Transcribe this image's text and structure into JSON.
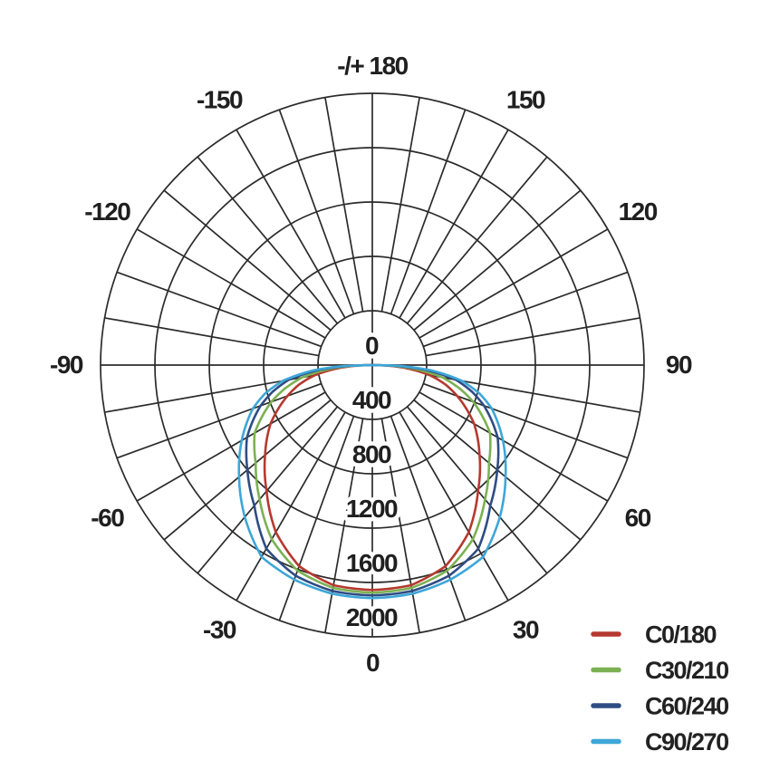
{
  "chart_data": {
    "type": "line",
    "subtype": "polar-photometric",
    "title": "",
    "background_color": "#ffffff",
    "grid": true,
    "grid_color": "#2b2b2b",
    "text_color": "#1f1f1f",
    "angle_unit": "degrees",
    "angular_tick_step_deg": 10,
    "angular_label_step_deg": 30,
    "top_angle_label": "-/+ 180",
    "bottom_angle_label": "0",
    "angular_labels": [
      {
        "angle": -150,
        "text": "-150"
      },
      {
        "angle": -120,
        "text": "-120"
      },
      {
        "angle": -90,
        "text": "-90"
      },
      {
        "angle": -60,
        "text": "-60"
      },
      {
        "angle": -30,
        "text": "-30"
      },
      {
        "angle": 0,
        "text": "0"
      },
      {
        "angle": 30,
        "text": "30"
      },
      {
        "angle": 60,
        "text": "60"
      },
      {
        "angle": 90,
        "text": "90"
      },
      {
        "angle": 120,
        "text": "120"
      },
      {
        "angle": 150,
        "text": "150"
      },
      {
        "angle": 180,
        "text": "-/+ 180"
      }
    ],
    "radial_axis": {
      "min": 0,
      "max": 2000,
      "tick_values": [
        0,
        400,
        800,
        1200,
        1600,
        2000
      ],
      "tick_labels": [
        "0",
        "400",
        "800",
        "1200",
        "1600",
        "2000"
      ]
    },
    "angles_deg": [
      0,
      10,
      20,
      30,
      40,
      50,
      60,
      70,
      75,
      80,
      85,
      88,
      90
    ],
    "symmetric_mirror": true,
    "series": [
      {
        "name": "C0/180",
        "color": "#b6392f",
        "values": [
          1655,
          1645,
          1575,
          1420,
          1210,
          1030,
          865,
          665,
          560,
          430,
          240,
          110,
          0
        ]
      },
      {
        "name": "C30/210",
        "color": "#7cb153",
        "values": [
          1675,
          1665,
          1610,
          1480,
          1290,
          1120,
          1000,
          790,
          665,
          525,
          305,
          140,
          0
        ]
      },
      {
        "name": "C60/240",
        "color": "#2e4d84",
        "values": [
          1695,
          1688,
          1650,
          1560,
          1350,
          1200,
          1065,
          875,
          760,
          625,
          385,
          180,
          0
        ]
      },
      {
        "name": "C90/270",
        "color": "#3ea6d8",
        "values": [
          1715,
          1708,
          1680,
          1630,
          1460,
          1280,
          1110,
          935,
          820,
          670,
          430,
          210,
          0
        ]
      }
    ],
    "legend_position": "bottom-right",
    "legend": [
      "C0/180",
      "C30/210",
      "C60/240",
      "C90/270"
    ]
  }
}
